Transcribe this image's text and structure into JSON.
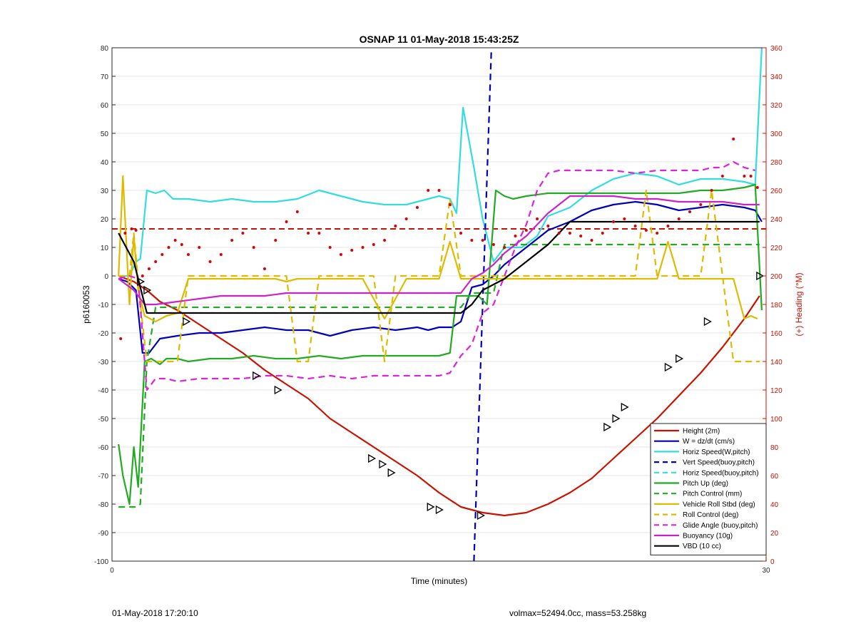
{
  "chart_data": {
    "type": "line",
    "title": "OSNAP 11 01-May-2018 15:43:25Z",
    "xlabel": "Time (minutes)",
    "ylabel": "p6160053",
    "y2label": "(+) Heading (°M)",
    "xlim": [
      0,
      30
    ],
    "ylim": [
      -100,
      80
    ],
    "y2lim": [
      0,
      360
    ],
    "x_ticks": [
      0,
      30
    ],
    "y_ticks": [
      80,
      70,
      60,
      50,
      40,
      30,
      20,
      10,
      0,
      -10,
      -20,
      -30,
      -40,
      -50,
      -60,
      -70,
      -80,
      -90,
      -100
    ],
    "y2_ticks": [
      360,
      340,
      320,
      300,
      280,
      260,
      240,
      220,
      200,
      180,
      160,
      140,
      120,
      100,
      80,
      60,
      40,
      20,
      0
    ],
    "grid": true,
    "legend_position": "bottom-right",
    "series": [
      {
        "name": "Height (2m)",
        "color": "#cc1100",
        "style": "solid",
        "x": [
          0.3,
          1.0,
          1.6,
          2.2,
          3.0,
          4.0,
          5.0,
          6.0,
          7.0,
          8.0,
          9.0,
          10.0,
          11.0,
          12.0,
          13.0,
          14.0,
          15.0,
          16.0,
          17.0,
          18.0,
          19.0,
          20.0,
          21.0,
          22.0,
          23.0,
          24.0,
          25.0,
          26.0,
          27.0,
          28.0,
          29.0,
          29.7
        ],
        "values": [
          0,
          -2,
          -5,
          -9,
          -12,
          -17,
          -22,
          -27,
          -33,
          -38,
          -43,
          -50,
          -55,
          -60,
          -65,
          -70,
          -76,
          -81,
          -83,
          -84,
          -83,
          -80,
          -76,
          -71,
          -64,
          -57,
          -50,
          -42,
          -34,
          -25,
          -15,
          -7
        ]
      },
      {
        "name": "W = dz/dt (cm/s)",
        "color": "#0000bb",
        "style": "solid",
        "x": [
          0.3,
          0.7,
          1.1,
          1.4,
          1.7,
          2.2,
          3.0,
          4.0,
          5.0,
          6.0,
          7.0,
          8.0,
          9.0,
          10.0,
          11.0,
          12.0,
          13.0,
          14.0,
          14.5,
          15.0,
          15.6,
          16.0,
          16.5,
          17.0,
          17.5,
          18.0,
          19.0,
          20.0,
          21.0,
          22.0,
          23.0,
          24.0,
          25.0,
          26.0,
          27.0,
          28.0,
          29.0,
          29.5,
          29.8
        ],
        "values": [
          -1,
          -2,
          -5,
          -27,
          -27,
          -22,
          -21,
          -20,
          -20,
          -19,
          -18,
          -19,
          -19,
          -21,
          -19,
          -18,
          -19,
          -18,
          -19,
          -18,
          -18,
          -16,
          -4,
          -3,
          0,
          4,
          10,
          16,
          19,
          23,
          25,
          26,
          25,
          23,
          24,
          25,
          24,
          23,
          19
        ]
      },
      {
        "name": "Horiz Speed(W,pitch)",
        "color": "#33dddd",
        "style": "solid",
        "x": [
          0.3,
          0.8,
          1.1,
          1.3,
          1.6,
          2.0,
          2.4,
          2.8,
          3.5,
          4.5,
          5.5,
          6.5,
          7.5,
          8.5,
          9.5,
          10.5,
          11.5,
          12.5,
          13.5,
          14.5,
          15.0,
          15.5,
          15.8,
          16.1,
          16.6,
          17.0,
          17.5,
          18.0,
          18.8,
          19.5,
          20.0,
          21.0,
          22.0,
          23.0,
          24.0,
          25.0,
          26.0,
          27.0,
          28.0,
          29.0,
          29.5,
          29.8
        ],
        "values": [
          0,
          0,
          5,
          6,
          30,
          29,
          30,
          27,
          27,
          26,
          27,
          26,
          26,
          27,
          30,
          28,
          26,
          25,
          25,
          27,
          28,
          27,
          22,
          59,
          38,
          20,
          5,
          10,
          10,
          14,
          21,
          24,
          30,
          34,
          36,
          35,
          32,
          34,
          34,
          33,
          32,
          80
        ]
      },
      {
        "name": "Vert Speed(buoy,pitch)",
        "color": "#0000bb",
        "style": "dashed",
        "x": [
          16.6,
          17.4
        ],
        "values": [
          -100,
          80
        ]
      },
      {
        "name": "Horiz Speed(buoy,pitch)",
        "color": "#33dddd",
        "style": "dashed",
        "x": [],
        "values": []
      },
      {
        "name": "Pitch Up (deg)",
        "color": "#22aa22",
        "style": "solid",
        "x": [
          0.3,
          0.5,
          0.8,
          1.0,
          1.2,
          1.5,
          1.8,
          2.2,
          2.5,
          3.0,
          3.5,
          4.5,
          5.5,
          6.5,
          7.5,
          8.5,
          9.5,
          10.5,
          11.5,
          12.5,
          13.5,
          14.5,
          15.0,
          15.5,
          15.8,
          16.2,
          16.8,
          17.2,
          17.6,
          18.0,
          18.4,
          19.0,
          20.0,
          21.0,
          22.0,
          23.0,
          24.0,
          25.0,
          26.0,
          27.0,
          28.0,
          29.0,
          29.5,
          29.8
        ],
        "values": [
          -59,
          -70,
          -80,
          -60,
          -74,
          -30,
          -29,
          -31,
          -29,
          -29,
          -30,
          -29,
          -29,
          -28,
          -29,
          -29,
          -28,
          -29,
          -28,
          -28,
          -28,
          -28,
          -28,
          -27,
          -7,
          -7,
          -7,
          -10,
          30,
          28,
          27,
          28,
          29,
          29,
          29,
          29,
          29,
          29,
          29,
          30,
          30,
          31,
          32,
          -12
        ]
      },
      {
        "name": "Pitch Control (mm)",
        "color": "#22aa22",
        "style": "dashed",
        "x": [
          0.3,
          0.8,
          1.1,
          1.3,
          1.6,
          2.0,
          2.5,
          3.0,
          4.0,
          6.0,
          8.0,
          10.0,
          12.0,
          14.0,
          15.0,
          16.0,
          16.5,
          17.0,
          17.5,
          18.0,
          19.5,
          20.0,
          21.0,
          22.0,
          24.0,
          26.0,
          28.0,
          29.0,
          29.7
        ],
        "values": [
          -81,
          -81,
          -81,
          -80,
          -30,
          -11,
          -11,
          -11,
          -11,
          -11,
          -11,
          -11,
          -11,
          -11,
          -11,
          -11,
          -6,
          -6,
          -6,
          11,
          11,
          11,
          11,
          11,
          11,
          11,
          11,
          11,
          11
        ]
      },
      {
        "name": "Vehicle Roll Stbd (deg)",
        "color": "#ddbb00",
        "style": "solid",
        "x": [
          0.3,
          0.5,
          0.8,
          1.0,
          1.2,
          1.5,
          2.0,
          2.5,
          3.0,
          3.5,
          4.0,
          4.5,
          5.5,
          6.5,
          7.5,
          8.0,
          8.5,
          9.5,
          10.5,
          11.0,
          11.5,
          12.5,
          13.5,
          14.0,
          14.5,
          15.0,
          15.5,
          16.0,
          16.5,
          17.0,
          17.5,
          18.0,
          19.0,
          20.0,
          21.0,
          22.0,
          23.0,
          24.0,
          25.0,
          25.5,
          26.0,
          27.0,
          28.0,
          28.5,
          29.0,
          29.3,
          29.6
        ],
        "values": [
          0,
          35,
          -10,
          14,
          -5,
          -14,
          -16,
          -14,
          -13,
          -1,
          -1,
          -1,
          -1,
          -1,
          -1,
          -2,
          -1,
          -1,
          -1,
          -1,
          -1,
          -15,
          -1,
          -1,
          -1,
          -1,
          12,
          -1,
          -1,
          -1,
          -1,
          -1,
          -1,
          -1,
          -1,
          -1,
          -1,
          -1,
          -1,
          12,
          -1,
          -1,
          -1,
          -1,
          -15,
          -14,
          -15
        ]
      },
      {
        "name": "Roll Control (deg)",
        "color": "#ddbb00",
        "style": "dashed",
        "x": [
          0.3,
          0.8,
          1.0,
          1.3,
          1.6,
          2.0,
          2.5,
          3.0,
          3.5,
          4.5,
          6.0,
          7.0,
          8.0,
          8.5,
          9.0,
          9.5,
          11.0,
          12.0,
          12.5,
          13.0,
          14.0,
          15.0,
          15.5,
          16.0,
          17.0,
          19.0,
          21.0,
          23.0,
          24.0,
          24.5,
          25.0,
          26.0,
          27.0,
          27.5,
          28.0,
          28.5,
          29.0,
          29.7
        ],
        "values": [
          0,
          0,
          15,
          -10,
          -30,
          -30,
          -30,
          -30,
          0,
          0,
          0,
          0,
          0,
          -30,
          -30,
          0,
          0,
          0,
          -30,
          0,
          0,
          0,
          27,
          0,
          0,
          0,
          0,
          0,
          0,
          30,
          0,
          0,
          0,
          30,
          0,
          -30,
          -30,
          -30
        ]
      },
      {
        "name": "Glide Angle (buoy,pitch)",
        "color": "#dd22dd",
        "style": "dashed",
        "x": [
          0.3,
          0.8,
          1.2,
          1.6,
          2.0,
          2.5,
          3.0,
          4.0,
          5.0,
          6.0,
          7.0,
          8.0,
          9.0,
          10.0,
          11.0,
          12.0,
          13.0,
          14.0,
          14.5,
          15.0,
          15.5,
          16.0,
          16.5,
          17.0,
          17.5,
          18.0,
          18.5,
          19.0,
          19.5,
          20.0,
          20.5,
          21.0,
          22.0,
          23.0,
          24.0,
          25.0,
          26.0,
          27.0,
          27.5,
          28.0,
          28.5,
          29.0,
          29.5
        ],
        "values": [
          -1,
          0,
          -1,
          -40,
          -36,
          -36,
          -37,
          -36,
          -36,
          -36,
          -35,
          -35,
          -36,
          -35,
          -36,
          -35,
          -35,
          -35,
          -35,
          -35,
          -34,
          -28,
          -24,
          -13,
          -10,
          0,
          10,
          18,
          30,
          36,
          37,
          37,
          37,
          37,
          36,
          37,
          37,
          37,
          38,
          38,
          40,
          38,
          37
        ]
      },
      {
        "name": "Buoyancy (10g)",
        "color": "#cc22cc",
        "style": "solid",
        "x": [
          0.3,
          1.0,
          1.5,
          2.0,
          3.0,
          4.0,
          5.0,
          6.0,
          7.0,
          8.0,
          9.0,
          10.0,
          11.0,
          12.0,
          13.0,
          14.0,
          15.0,
          16.0,
          16.5,
          17.0,
          17.5,
          18.0,
          19.0,
          20.0,
          21.0,
          22.0,
          23.0,
          24.0,
          25.0,
          26.0,
          27.0,
          28.0,
          29.0,
          29.7
        ],
        "values": [
          -1,
          -5,
          -10,
          -10,
          -9,
          -8,
          -7,
          -7,
          -7,
          -6,
          -6,
          -6,
          -6,
          -6,
          -6,
          -6,
          -6,
          -6,
          -1,
          1,
          4,
          8,
          14,
          22,
          28,
          28,
          28,
          27,
          27,
          26,
          26,
          26,
          25,
          25
        ]
      },
      {
        "name": "VBD (10 cc)",
        "color": "#000000",
        "style": "solid",
        "x": [
          0.3,
          1.0,
          1.6,
          2.0,
          3.0,
          4.0,
          5.0,
          6.0,
          7.0,
          8.0,
          9.0,
          10.0,
          11.0,
          12.0,
          13.0,
          14.0,
          15.0,
          16.0,
          16.5,
          17.0,
          18.0,
          19.0,
          20.0,
          21.0,
          22.0,
          23.0,
          24.0,
          25.0,
          26.0,
          27.0,
          28.0,
          29.0,
          29.7
        ],
        "values": [
          15,
          5,
          -13,
          -13,
          -13,
          -13,
          -13,
          -13,
          -13,
          -13,
          -13,
          -13,
          -13,
          -13,
          -13,
          -13,
          -13,
          -13,
          -10,
          -5,
          -1,
          5,
          11,
          19,
          19,
          19,
          19,
          19,
          19,
          19,
          19,
          19,
          19
        ]
      }
    ],
    "heading_reference": {
      "name": "heading reference",
      "color": "#cc1100",
      "style": "dashed",
      "value_deg": 233
    },
    "heading_points": {
      "color": "#dd0000",
      "x": [
        0.4,
        0.6,
        0.9,
        1.1,
        1.4,
        1.7,
        2.0,
        2.3,
        2.6,
        2.9,
        3.2,
        3.5,
        4.0,
        4.5,
        5.0,
        5.5,
        6.0,
        6.5,
        7.0,
        7.5,
        8.0,
        8.5,
        9.0,
        9.5,
        10.0,
        10.5,
        11.0,
        11.5,
        12.0,
        12.5,
        13.0,
        13.5,
        14.0,
        14.5,
        15.0,
        15.5,
        16.0,
        16.5,
        17.0,
        17.5,
        18.0,
        18.5,
        19.0,
        19.5,
        20.0,
        20.5,
        21.0,
        21.5,
        22.0,
        22.5,
        23.0,
        23.5,
        24.0,
        24.5,
        25.0,
        25.5,
        26.0,
        26.5,
        27.0,
        27.5,
        28.0,
        28.5,
        29.0,
        29.3,
        29.6
      ],
      "values": [
        156,
        230,
        233,
        232,
        200,
        205,
        210,
        215,
        220,
        225,
        222,
        215,
        220,
        210,
        215,
        225,
        230,
        220,
        205,
        225,
        238,
        245,
        230,
        230,
        220,
        215,
        218,
        220,
        222,
        225,
        235,
        240,
        248,
        260,
        260,
        250,
        230,
        225,
        225,
        222,
        220,
        228,
        232,
        240,
        235,
        230,
        230,
        228,
        225,
        230,
        238,
        240,
        235,
        232,
        230,
        235,
        240,
        245,
        250,
        260,
        270,
        296,
        270,
        270,
        262
      ]
    },
    "profile_markers": {
      "x": [
        1.3,
        1.6,
        3.4,
        6.6,
        7.6,
        11.9,
        12.4,
        12.8,
        14.6,
        15.0,
        16.9,
        22.7,
        23.1,
        23.5,
        25.5,
        26.0,
        27.3,
        29.7
      ],
      "values": [
        -2,
        -5,
        -16,
        -35,
        -40,
        -64,
        -66,
        -69,
        -81,
        -82,
        -84,
        -53,
        -50,
        -46,
        -32,
        -29,
        -16,
        0
      ]
    }
  },
  "footer": {
    "left": "01-May-2018 17:20:10",
    "right": "volmax=52494.0cc, mass=53.258kg"
  }
}
